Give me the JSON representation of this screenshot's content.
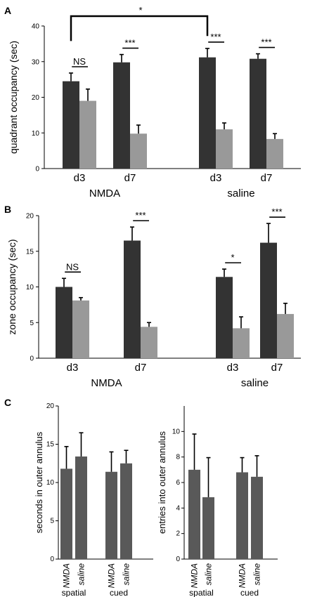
{
  "chart_data": [
    {
      "panel": "A",
      "type": "bar",
      "ylabel": "quadrant occupancy (sec)",
      "ylim": [
        0,
        40
      ],
      "yticks": [
        0,
        10,
        20,
        30,
        40
      ],
      "colors": {
        "dark": "#333333",
        "light": "#999999"
      },
      "groups": [
        {
          "label": "NMDA",
          "categories": [
            {
              "label": "d3",
              "values": [
                24.5,
                19
              ],
              "errors": [
                2.3,
                3.3
              ],
              "sig": "NS"
            },
            {
              "label": "d7",
              "values": [
                29.8,
                9.8
              ],
              "errors": [
                2.2,
                2.4
              ],
              "sig": "***"
            }
          ]
        },
        {
          "label": "saline",
          "categories": [
            {
              "label": "d3",
              "values": [
                31.2,
                11
              ],
              "errors": [
                2.5,
                1.8
              ],
              "sig": "***"
            },
            {
              "label": "d7",
              "values": [
                30.8,
                8.3
              ],
              "errors": [
                1.4,
                1.5
              ],
              "sig": "***"
            }
          ]
        }
      ],
      "comparison": {
        "label": "*",
        "between": [
          "NMDA d3",
          "saline d3"
        ]
      }
    },
    {
      "panel": "B",
      "type": "bar",
      "ylabel": "zone occupancy (sec)",
      "ylim": [
        0,
        20
      ],
      "yticks": [
        0,
        5,
        10,
        15,
        20
      ],
      "colors": {
        "dark": "#333333",
        "light": "#999999"
      },
      "groups": [
        {
          "label": "NMDA",
          "categories": [
            {
              "label": "d3",
              "values": [
                10,
                8.1
              ],
              "errors": [
                1.2,
                0.4
              ],
              "sig": "NS"
            },
            {
              "label": "d7",
              "values": [
                16.5,
                4.4
              ],
              "errors": [
                1.9,
                0.6
              ],
              "sig": "***"
            }
          ]
        },
        {
          "label": "saline",
          "categories": [
            {
              "label": "d3",
              "values": [
                11.4,
                4.2
              ],
              "errors": [
                1.1,
                1.6
              ],
              "sig": "*"
            },
            {
              "label": "d7",
              "values": [
                16.2,
                6.2
              ],
              "errors": [
                2.7,
                1.5
              ],
              "sig": "***"
            }
          ]
        }
      ]
    },
    {
      "panel": "C",
      "type": "bar",
      "ylabel": "seconds in outer annulus",
      "ylim": [
        0,
        20
      ],
      "yticks": [
        0,
        5,
        10,
        15,
        20
      ],
      "color": "#595959",
      "groups": [
        {
          "label": "spatial",
          "bars": [
            {
              "label": "NMDA",
              "value": 11.8,
              "error": 2.9
            },
            {
              "label": "saline",
              "value": 13.4,
              "error": 3.1
            }
          ]
        },
        {
          "label": "cued",
          "bars": [
            {
              "label": "NMDA",
              "value": 11.4,
              "error": 2.6
            },
            {
              "label": "saline",
              "value": 12.5,
              "error": 1.7
            }
          ]
        }
      ]
    },
    {
      "panel": "",
      "type": "bar",
      "ylabel": "entries into outer annulus",
      "ylim": [
        0,
        12
      ],
      "yticks": [
        0,
        2,
        4,
        6,
        8,
        10
      ],
      "color": "#595959",
      "groups": [
        {
          "label": "spatial",
          "bars": [
            {
              "label": "NMDA",
              "value": 7,
              "error": 2.8
            },
            {
              "label": "saline",
              "value": 4.85,
              "error": 3.1
            }
          ]
        },
        {
          "label": "cued",
          "bars": [
            {
              "label": "NMDA",
              "value": 6.8,
              "error": 1.15
            },
            {
              "label": "saline",
              "value": 6.45,
              "error": 1.65
            }
          ]
        }
      ]
    }
  ]
}
